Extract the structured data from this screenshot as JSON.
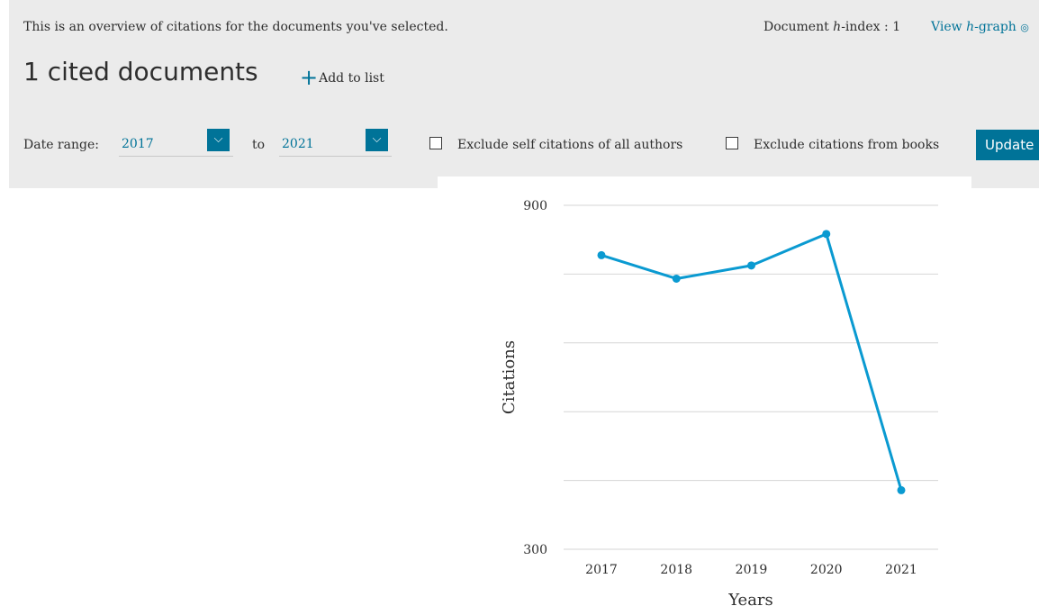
{
  "header": {
    "intro": "This is an overview of citations for the documents you've selected.",
    "hindex_label_pre": "Document ",
    "hindex_label_h": "h",
    "hindex_label_post": "-index : 1",
    "hgraph_pre": "View ",
    "hgraph_h": "h",
    "hgraph_post": "-graph",
    "title": "1 cited documents",
    "add_to_list": "Add to list"
  },
  "filters": {
    "date_range_label": "Date range:",
    "from_year": "2017",
    "to_label": "to",
    "to_year": "2021",
    "exclude_self": "Exclude self citations of all authors",
    "exclude_self_checked": false,
    "exclude_books": "Exclude citations from books",
    "exclude_books_checked": false,
    "update_label": "Update"
  },
  "chart_data": {
    "type": "line",
    "categories": [
      "2017",
      "2018",
      "2019",
      "2020",
      "2021"
    ],
    "series": [
      {
        "values": [
          813,
          772,
          795,
          850,
          403
        ],
        "color": "#0a9ad1"
      }
    ],
    "xlabel": "Years",
    "ylabel": "Citations",
    "ylim": [
      300,
      900
    ],
    "yticks_labeled": [
      "900",
      "300"
    ],
    "gridlines": 5,
    "grid": true
  }
}
